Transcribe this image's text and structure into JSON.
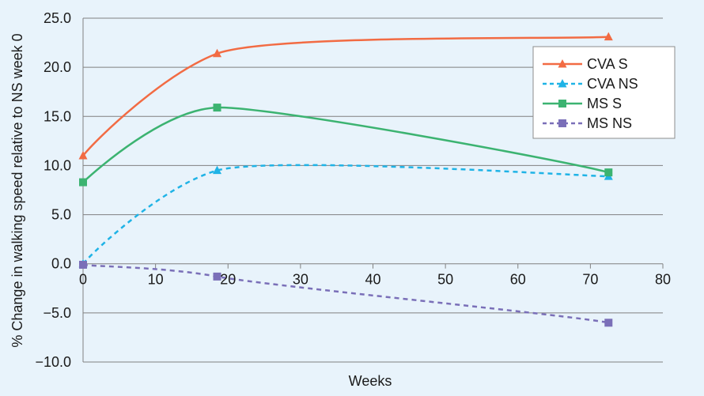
{
  "chart_data": {
    "type": "line",
    "xlabel": "Weeks",
    "ylabel": "% Change in walking speed relative to NS week 0",
    "xlim": [
      0,
      80
    ],
    "ylim": [
      -10,
      25
    ],
    "xticks": [
      "0",
      "10",
      "20",
      "30",
      "40",
      "50",
      "60",
      "70",
      "80"
    ],
    "yticks": [
      "25.0",
      "20.0",
      "15.0",
      "10.0",
      "5.0",
      "0.0",
      "−5.0",
      "−10.0"
    ],
    "grid": "horizontal",
    "legend_position": "top-right",
    "series": [
      {
        "name": "CVA S",
        "color": "#f26b43",
        "dashed": false,
        "marker": "triangle",
        "x": [
          0,
          18.5,
          72.5
        ],
        "y": [
          11.0,
          21.4,
          23.1
        ]
      },
      {
        "name": "CVA NS",
        "color": "#1fb3e6",
        "dashed": true,
        "marker": "triangle",
        "x": [
          0,
          18.5,
          72.5
        ],
        "y": [
          0.0,
          9.5,
          8.9
        ]
      },
      {
        "name": "MS S",
        "color": "#3cb371",
        "dashed": false,
        "marker": "square",
        "x": [
          0,
          18.5,
          72.5
        ],
        "y": [
          8.3,
          15.9,
          9.3
        ]
      },
      {
        "name": "MS NS",
        "color": "#7a6fb8",
        "dashed": true,
        "marker": "square",
        "x": [
          0,
          18.5,
          72.5
        ],
        "y": [
          -0.1,
          -1.3,
          -6.0
        ]
      }
    ]
  }
}
